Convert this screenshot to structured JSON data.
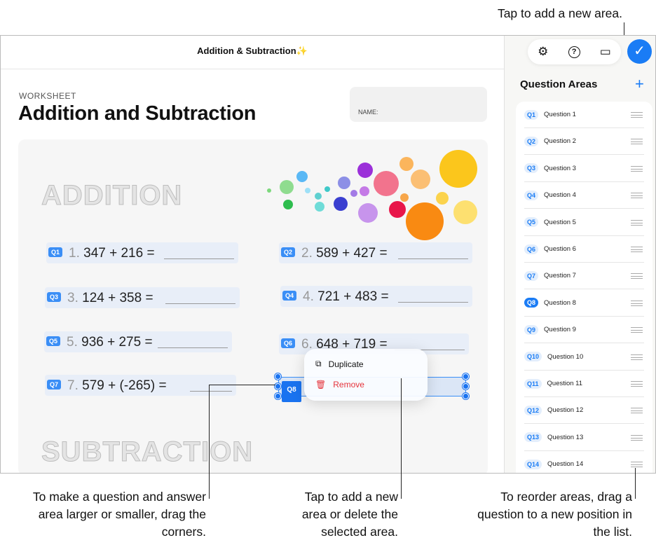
{
  "window": {
    "title": "Addition & Subtraction✨"
  },
  "worksheet": {
    "label": "WORKSHEET",
    "title": "Addition and Subtraction",
    "name_label": "NAME:",
    "section1": "ADDITION",
    "section2": "SUBTRACTION"
  },
  "questions": [
    {
      "tag": "Q1",
      "num": "1.",
      "expr": "347 + 216 ="
    },
    {
      "tag": "Q2",
      "num": "2.",
      "expr": "589 + 427 ="
    },
    {
      "tag": "Q3",
      "num": "3.",
      "expr": "124 + 358 ="
    },
    {
      "tag": "Q4",
      "num": "4.",
      "expr": "721 + 483 ="
    },
    {
      "tag": "Q5",
      "num": "5.",
      "expr": "936 + 275 ="
    },
    {
      "tag": "Q6",
      "num": "6.",
      "expr": "648 + 719 ="
    },
    {
      "tag": "Q7",
      "num": "7.",
      "expr": "579 + (-265) ="
    },
    {
      "tag": "Q8"
    }
  ],
  "context_menu": {
    "duplicate": "Duplicate",
    "remove": "Remove",
    "remove_color": "#e5333a"
  },
  "sidebar": {
    "title": "Question Areas",
    "add": "+",
    "done": "✓",
    "toolbar": {
      "settings": "⚙",
      "help": "?",
      "panel": "▭"
    },
    "selected": "Q8",
    "items": [
      {
        "badge": "Q1",
        "label": "Question 1"
      },
      {
        "badge": "Q2",
        "label": "Question 2"
      },
      {
        "badge": "Q3",
        "label": "Question 3"
      },
      {
        "badge": "Q4",
        "label": "Question 4"
      },
      {
        "badge": "Q5",
        "label": "Question 5"
      },
      {
        "badge": "Q6",
        "label": "Question 6"
      },
      {
        "badge": "Q7",
        "label": "Question 7"
      },
      {
        "badge": "Q8",
        "label": "Question 8"
      },
      {
        "badge": "Q9",
        "label": "Question 9"
      },
      {
        "badge": "Q10",
        "label": "Question 10"
      },
      {
        "badge": "Q11",
        "label": "Question 11"
      },
      {
        "badge": "Q12",
        "label": "Question 12"
      },
      {
        "badge": "Q13",
        "label": "Question 13"
      },
      {
        "badge": "Q14",
        "label": "Question 14"
      }
    ]
  },
  "callouts": {
    "add_area": "Tap to add a new area.",
    "resize": "To make a question and answer area larger or smaller, drag the corners.",
    "menu": "Tap to add a new area or delete the selected area.",
    "reorder": "To reorder areas, drag a question to a new position in the list."
  },
  "accent": "#1a7cf5"
}
